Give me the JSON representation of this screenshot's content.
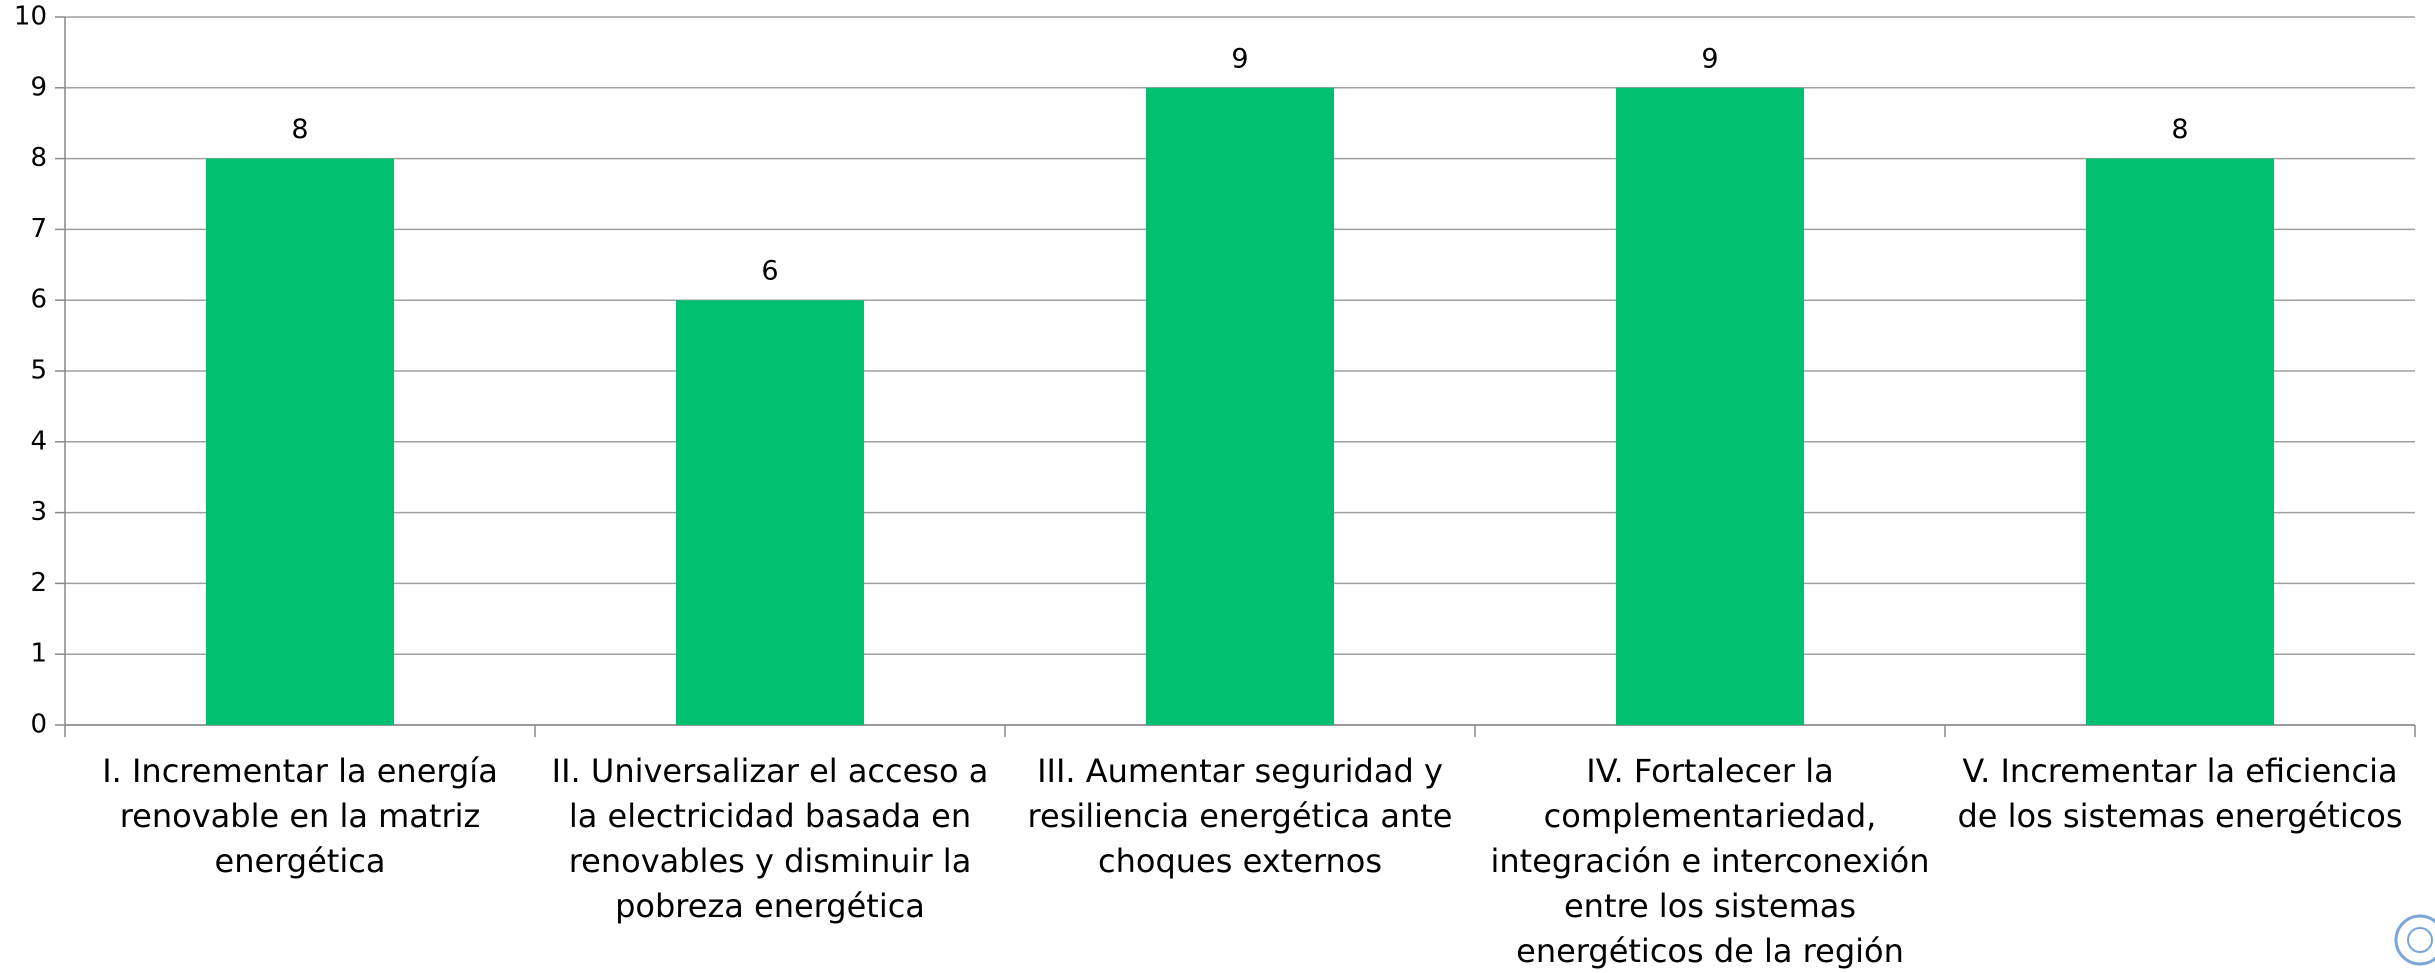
{
  "chart_data": {
    "type": "bar",
    "categories": [
      "I. Incrementar la energía renovable en la matriz energética",
      "II. Universalizar el acceso a la electricidad basada en renovables y disminuir la pobreza energética",
      "III. Aumentar seguridad y resiliencia energética ante choques externos",
      "IV. Fortalecer la complementariedad, integración e interconexión entre los sistemas energéticos de la región",
      "V. Incrementar la eficiencia de los sistemas energéticos"
    ],
    "values": [
      8,
      6,
      9,
      9,
      8
    ],
    "color": "#00bf6f",
    "ylim": [
      0,
      10
    ],
    "yticks": [
      0,
      1,
      2,
      3,
      4,
      5,
      6,
      7,
      8,
      9,
      10
    ],
    "grid": true
  }
}
